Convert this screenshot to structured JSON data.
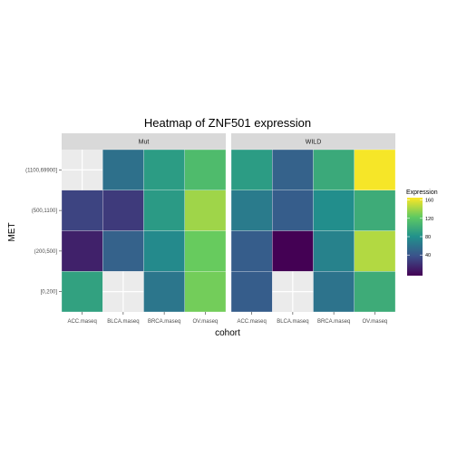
{
  "chart_data": {
    "type": "heatmap",
    "title": "Heatmap of ZNF501 expression",
    "xlabel": "cohort",
    "ylabel": "MET",
    "facets": [
      "Mut",
      "WILD"
    ],
    "x_categories": [
      "ACC.maseq",
      "BLCA.maseq",
      "BRCA.maseq",
      "OV.maseq"
    ],
    "y_categories": [
      "[0,200]",
      "(200,500]",
      "(500,1100]",
      "(1100,69900]"
    ],
    "legend": {
      "title": "Expression",
      "ticks": [
        40,
        80,
        120,
        160
      ],
      "range": [
        -5,
        165
      ],
      "position": "right"
    },
    "cells": [
      {
        "facet": "Mut",
        "x": "ACC.maseq",
        "y": "[0,200]",
        "value": 92
      },
      {
        "facet": "Mut",
        "x": "ACC.maseq",
        "y": "(200,500]",
        "value": 12
      },
      {
        "facet": "Mut",
        "x": "ACC.maseq",
        "y": "(500,1100]",
        "value": 30
      },
      {
        "facet": "Mut",
        "x": "BLCA.maseq",
        "y": "(200,500]",
        "value": 48
      },
      {
        "facet": "Mut",
        "x": "BLCA.maseq",
        "y": "(500,1100]",
        "value": 25
      },
      {
        "facet": "Mut",
        "x": "BLCA.maseq",
        "y": "(1100,69900]",
        "value": 58
      },
      {
        "facet": "Mut",
        "x": "BRCA.maseq",
        "y": "[0,200]",
        "value": 62
      },
      {
        "facet": "Mut",
        "x": "BRCA.maseq",
        "y": "(200,500]",
        "value": 75
      },
      {
        "facet": "Mut",
        "x": "BRCA.maseq",
        "y": "(500,1100]",
        "value": 87
      },
      {
        "facet": "Mut",
        "x": "BRCA.maseq",
        "y": "(1100,69900]",
        "value": 88
      },
      {
        "facet": "Mut",
        "x": "OV.maseq",
        "y": "[0,200]",
        "value": 128
      },
      {
        "facet": "Mut",
        "x": "OV.maseq",
        "y": "(200,500]",
        "value": 125
      },
      {
        "facet": "Mut",
        "x": "OV.maseq",
        "y": "(500,1100]",
        "value": 140
      },
      {
        "facet": "Mut",
        "x": "OV.maseq",
        "y": "(1100,69900]",
        "value": 112
      },
      {
        "facet": "WILD",
        "x": "ACC.maseq",
        "y": "[0,200]",
        "value": 45
      },
      {
        "facet": "WILD",
        "x": "ACC.maseq",
        "y": "(200,500]",
        "value": 45
      },
      {
        "facet": "WILD",
        "x": "ACC.maseq",
        "y": "(500,1100]",
        "value": 65
      },
      {
        "facet": "WILD",
        "x": "ACC.maseq",
        "y": "(1100,69900]",
        "value": 88
      },
      {
        "facet": "WILD",
        "x": "BLCA.maseq",
        "y": "(200,500]",
        "value": -5
      },
      {
        "facet": "WILD",
        "x": "BLCA.maseq",
        "y": "(500,1100]",
        "value": 45
      },
      {
        "facet": "WILD",
        "x": "BLCA.maseq",
        "y": "(1100,69900]",
        "value": 48
      },
      {
        "facet": "WILD",
        "x": "BRCA.maseq",
        "y": "[0,200]",
        "value": 60
      },
      {
        "facet": "WILD",
        "x": "BRCA.maseq",
        "y": "(200,500]",
        "value": 70
      },
      {
        "facet": "WILD",
        "x": "BRCA.maseq",
        "y": "(500,1100]",
        "value": 78
      },
      {
        "facet": "WILD",
        "x": "BRCA.maseq",
        "y": "(1100,69900]",
        "value": 98
      },
      {
        "facet": "WILD",
        "x": "OV.maseq",
        "y": "[0,200]",
        "value": 100
      },
      {
        "facet": "WILD",
        "x": "OV.maseq",
        "y": "(200,500]",
        "value": 145
      },
      {
        "facet": "WILD",
        "x": "OV.maseq",
        "y": "(500,1100]",
        "value": 100
      },
      {
        "facet": "WILD",
        "x": "OV.maseq",
        "y": "(1100,69900]",
        "value": 163
      }
    ],
    "colors": {
      "panel_background": "#ebebeb",
      "grid": "#ffffff",
      "strip_background": "#d9d9d9",
      "palette": "viridis"
    }
  }
}
